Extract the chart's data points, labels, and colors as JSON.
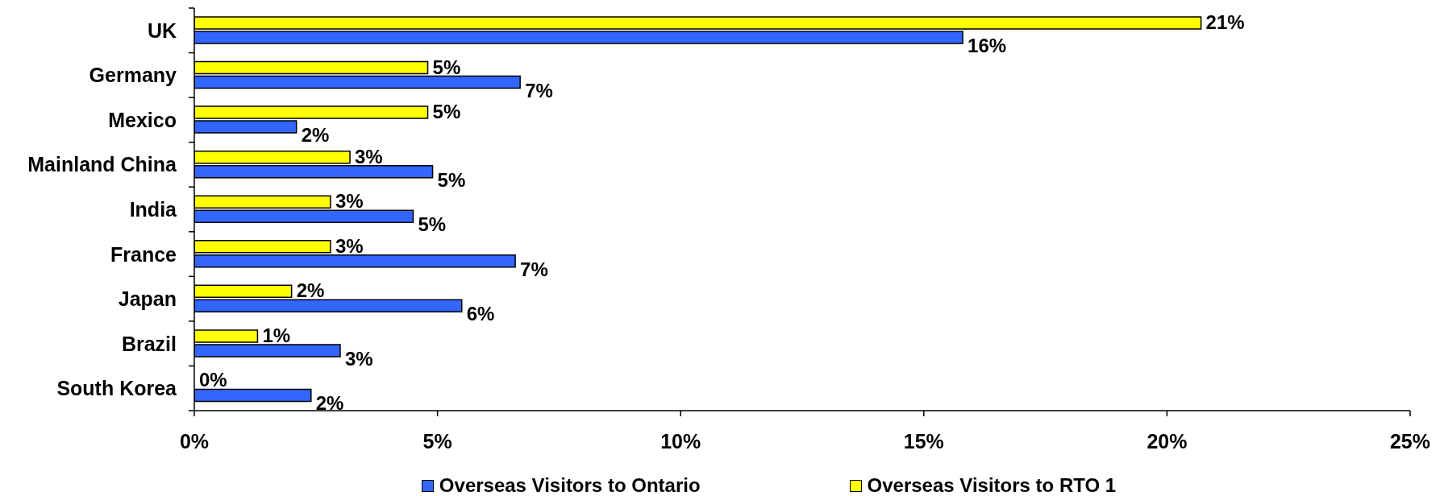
{
  "chart_data": {
    "type": "bar",
    "orientation": "horizontal",
    "categories": [
      "UK",
      "Germany",
      "Mexico",
      "Mainland China",
      "India",
      "France",
      "Japan",
      "Brazil",
      "South Korea"
    ],
    "series": [
      {
        "name": "Overseas Visitors to Ontario",
        "color": "#3366ff",
        "values": [
          15.8,
          6.7,
          2.1,
          4.9,
          4.5,
          6.6,
          5.5,
          3.0,
          2.4
        ],
        "value_labels": [
          "16%",
          "7%",
          "2%",
          "5%",
          "5%",
          "7%",
          "6%",
          "3%",
          "2%"
        ]
      },
      {
        "name": "Overseas Visitors to RTO 1",
        "color": "#ffff00",
        "values": [
          20.7,
          4.8,
          4.8,
          3.2,
          2.8,
          2.8,
          2.0,
          1.3,
          0
        ],
        "value_labels": [
          "21%",
          "5%",
          "5%",
          "3%",
          "3%",
          "3%",
          "2%",
          "1%",
          "0%"
        ]
      }
    ],
    "xlim": [
      0,
      25
    ],
    "xticks": [
      {
        "value": 0,
        "label": "0%"
      },
      {
        "value": 5,
        "label": "5%"
      },
      {
        "value": 10,
        "label": "10%"
      },
      {
        "value": 15,
        "label": "15%"
      },
      {
        "value": 20,
        "label": "20%"
      },
      {
        "value": 25,
        "label": "25%"
      }
    ],
    "legend": "bottom"
  }
}
